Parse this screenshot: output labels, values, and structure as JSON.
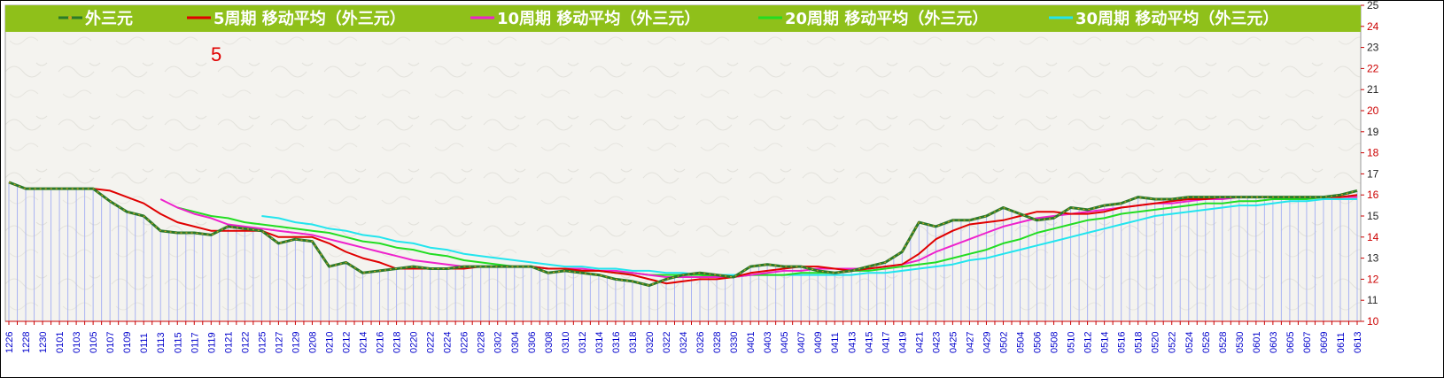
{
  "chart_data": {
    "type": "line",
    "ylim": [
      10,
      25
    ],
    "y_ticks": [
      10,
      11,
      12,
      13,
      14,
      15,
      16,
      17,
      18,
      19,
      20,
      21,
      22,
      23,
      24,
      25
    ],
    "x_tick_labels": [
      "1226",
      "1228",
      "1230",
      "0101",
      "0103",
      "0105",
      "0107",
      "0109",
      "0111",
      "0113",
      "0115",
      "0117",
      "0119",
      "0121",
      "0122",
      "0125",
      "0127",
      "0129",
      "0208",
      "0210",
      "0212",
      "0214",
      "0216",
      "0218",
      "0220",
      "0222",
      "0224",
      "0226",
      "0228",
      "0302",
      "0304",
      "0306",
      "0308",
      "0310",
      "0312",
      "0314",
      "0316",
      "0318",
      "0320",
      "0322",
      "0324",
      "0326",
      "0328",
      "0330",
      "0401",
      "0403",
      "0405",
      "0407",
      "0409",
      "0411",
      "0413",
      "0415",
      "0417",
      "0419",
      "0421",
      "0423",
      "0425",
      "0427",
      "0429",
      "0502",
      "0504",
      "0506",
      "0508",
      "0510",
      "0512",
      "0514",
      "0516",
      "0518",
      "0520",
      "0522",
      "0524",
      "0526",
      "0528",
      "0530",
      "0601",
      "0603",
      "0605",
      "0607",
      "0609",
      "0611",
      "0613"
    ],
    "annotation": "5",
    "legend_position": "top",
    "grid": true,
    "series": [
      {
        "name": "外三元",
        "color": "#2a7a2a",
        "values": [
          16.6,
          16.3,
          16.3,
          16.3,
          16.3,
          16.3,
          15.7,
          15.2,
          15.0,
          14.3,
          14.2,
          14.2,
          14.1,
          14.5,
          14.4,
          14.3,
          13.7,
          13.9,
          13.8,
          12.6,
          12.8,
          12.3,
          12.4,
          12.5,
          12.6,
          12.5,
          12.5,
          12.6,
          12.6,
          12.6,
          12.6,
          12.6,
          12.3,
          12.4,
          12.3,
          12.2,
          12.0,
          11.9,
          11.7,
          12.0,
          12.2,
          12.3,
          12.2,
          12.1,
          12.6,
          12.7,
          12.6,
          12.6,
          12.4,
          12.3,
          12.4,
          12.6,
          12.8,
          13.3,
          14.7,
          14.5,
          14.8,
          14.8,
          15.0,
          15.4,
          15.1,
          14.8,
          14.9,
          15.4,
          15.3,
          15.5,
          15.6,
          15.9,
          15.8,
          15.8,
          15.9,
          15.9,
          15.9,
          15.9,
          15.9,
          15.9,
          15.9,
          15.9,
          15.9,
          16.0,
          16.2
        ]
      },
      {
        "name": "5周期 移动平均（外三元）",
        "color": "#e00000",
        "values": [
          null,
          null,
          null,
          null,
          16.3,
          16.3,
          16.2,
          15.9,
          15.6,
          15.1,
          14.7,
          14.5,
          14.3,
          14.3,
          14.3,
          14.3,
          14.0,
          14.0,
          14.0,
          13.7,
          13.3,
          13.0,
          12.8,
          12.5,
          12.5,
          12.5,
          12.5,
          12.5,
          12.6,
          12.6,
          12.6,
          12.6,
          12.5,
          12.5,
          12.4,
          12.4,
          12.3,
          12.2,
          12.0,
          11.8,
          11.9,
          12.0,
          12.0,
          12.1,
          12.3,
          12.4,
          12.5,
          12.6,
          12.6,
          12.5,
          12.4,
          12.5,
          12.6,
          12.7,
          13.2,
          13.9,
          14.3,
          14.6,
          14.7,
          14.8,
          15.0,
          15.2,
          15.2,
          15.1,
          15.1,
          15.2,
          15.4,
          15.5,
          15.6,
          15.7,
          15.8,
          15.8,
          15.9,
          15.9,
          15.9,
          15.9,
          15.9,
          15.9,
          15.9,
          15.9,
          16.0
        ]
      },
      {
        "name": "10周期 移动平均（外三元）",
        "color": "#ee22cc",
        "values": [
          null,
          null,
          null,
          null,
          null,
          null,
          null,
          null,
          null,
          15.8,
          15.4,
          15.1,
          14.9,
          14.6,
          14.5,
          14.4,
          14.3,
          14.2,
          14.1,
          13.9,
          13.7,
          13.5,
          13.3,
          13.1,
          12.9,
          12.8,
          12.7,
          12.6,
          12.6,
          12.6,
          12.6,
          12.6,
          12.5,
          12.5,
          12.5,
          12.4,
          12.4,
          12.3,
          12.2,
          12.1,
          12.1,
          12.1,
          12.1,
          12.1,
          12.2,
          12.3,
          12.4,
          12.4,
          12.5,
          12.5,
          12.5,
          12.5,
          12.6,
          12.7,
          12.9,
          13.3,
          13.6,
          13.9,
          14.2,
          14.5,
          14.7,
          14.9,
          15.0,
          15.1,
          15.2,
          15.3,
          15.4,
          15.5,
          15.6,
          15.6,
          15.7,
          15.8,
          15.8,
          15.9,
          15.9,
          15.9,
          15.9,
          15.9,
          15.9,
          15.9,
          15.9
        ]
      },
      {
        "name": "20周期 移动平均（外三元）",
        "color": "#22dd22",
        "values": [
          null,
          null,
          null,
          null,
          null,
          null,
          null,
          null,
          null,
          null,
          15.4,
          15.2,
          15.0,
          14.9,
          14.7,
          14.6,
          14.5,
          14.4,
          14.3,
          14.2,
          14.0,
          13.8,
          13.7,
          13.5,
          13.4,
          13.2,
          13.1,
          12.9,
          12.8,
          12.7,
          12.6,
          12.6,
          12.5,
          12.5,
          12.4,
          12.4,
          12.3,
          12.3,
          12.2,
          12.2,
          12.2,
          12.2,
          12.1,
          12.1,
          12.2,
          12.2,
          12.2,
          12.3,
          12.3,
          12.3,
          12.4,
          12.4,
          12.5,
          12.6,
          12.7,
          12.8,
          13.0,
          13.2,
          13.4,
          13.7,
          13.9,
          14.2,
          14.4,
          14.6,
          14.8,
          14.9,
          15.1,
          15.2,
          15.3,
          15.4,
          15.5,
          15.6,
          15.6,
          15.7,
          15.7,
          15.8,
          15.8,
          15.8,
          15.9,
          15.9,
          15.9
        ]
      },
      {
        "name": "30周期 移动平均（外三元）",
        "color": "#22e5ee",
        "values": [
          null,
          null,
          null,
          null,
          null,
          null,
          null,
          null,
          null,
          null,
          null,
          null,
          null,
          null,
          null,
          15.0,
          14.9,
          14.7,
          14.6,
          14.4,
          14.3,
          14.1,
          14.0,
          13.8,
          13.7,
          13.5,
          13.4,
          13.2,
          13.1,
          13.0,
          12.9,
          12.8,
          12.7,
          12.6,
          12.6,
          12.5,
          12.5,
          12.4,
          12.4,
          12.3,
          12.3,
          12.2,
          12.2,
          12.2,
          12.2,
          12.2,
          12.2,
          12.2,
          12.2,
          12.2,
          12.2,
          12.3,
          12.3,
          12.4,
          12.5,
          12.6,
          12.7,
          12.9,
          13.0,
          13.2,
          13.4,
          13.6,
          13.8,
          14.0,
          14.2,
          14.4,
          14.6,
          14.8,
          15.0,
          15.1,
          15.2,
          15.3,
          15.4,
          15.5,
          15.5,
          15.6,
          15.7,
          15.7,
          15.8,
          15.8,
          15.8
        ]
      }
    ]
  }
}
